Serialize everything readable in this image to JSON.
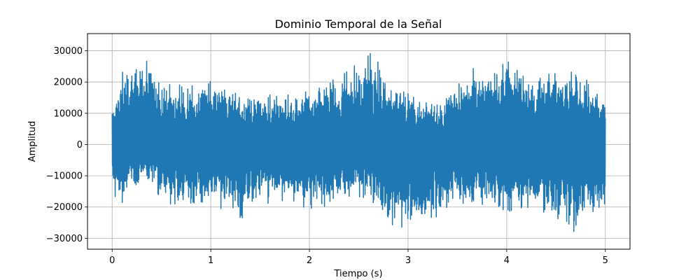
{
  "chart_data": {
    "type": "line",
    "title": "Dominio Temporal de la Señal",
    "xlabel": "Tiempo (s)",
    "ylabel": "Amplitud",
    "xlim": [
      -0.25,
      5.25
    ],
    "ylim": [
      -33500,
      35500
    ],
    "x_ticks": [
      0,
      1,
      2,
      3,
      4,
      5
    ],
    "x_tick_labels": [
      "0",
      "1",
      "2",
      "3",
      "4",
      "5"
    ],
    "y_ticks": [
      -30000,
      -20000,
      -10000,
      0,
      10000,
      20000,
      30000
    ],
    "y_tick_labels": [
      "−30000",
      "−20000",
      "−10000",
      "0",
      "10000",
      "20000",
      "30000"
    ],
    "grid": true,
    "series": [
      {
        "color": "#1f77b4",
        "x": [
          0,
          0.1,
          0.2,
          0.3,
          0.4,
          0.5,
          0.6,
          0.7,
          0.8,
          0.9,
          1.0,
          1.1,
          1.2,
          1.3,
          1.4,
          1.5,
          1.6,
          1.7,
          1.8,
          1.9,
          2.0,
          2.1,
          2.2,
          2.3,
          2.4,
          2.5,
          2.6,
          2.7,
          2.8,
          2.9,
          3.0,
          3.1,
          3.2,
          3.3,
          3.4,
          3.5,
          3.6,
          3.7,
          3.8,
          3.9,
          4.0,
          4.1,
          4.2,
          4.3,
          4.4,
          4.5,
          4.6,
          4.7,
          4.8,
          4.9,
          5.0
        ],
        "upper": [
          15000,
          25000,
          29000,
          30000,
          27000,
          22000,
          21000,
          20000,
          19000,
          20000,
          23000,
          19000,
          20000,
          17000,
          18000,
          16000,
          17000,
          18000,
          16000,
          19000,
          18000,
          20000,
          22000,
          22000,
          30000,
          25000,
          32000,
          29000,
          20000,
          20000,
          19000,
          14000,
          16000,
          13000,
          18000,
          22000,
          23000,
          26000,
          27000,
          28000,
          30000,
          28000,
          26000,
          23000,
          24000,
          26000,
          23000,
          25000,
          23000,
          20000,
          16000
        ],
        "lower": [
          -16000,
          -20000,
          -15000,
          -14000,
          -13000,
          -19000,
          -23000,
          -21000,
          -22000,
          -22000,
          -21000,
          -22000,
          -19000,
          -28000,
          -21000,
          -18000,
          -20000,
          -19000,
          -21000,
          -20000,
          -22000,
          -20000,
          -24000,
          -17000,
          -20000,
          -19000,
          -17000,
          -22000,
          -29000,
          -27000,
          -28000,
          -29000,
          -28000,
          -25000,
          -22000,
          -21000,
          -21000,
          -18000,
          -22000,
          -23000,
          -24000,
          -23000,
          -21000,
          -20000,
          -23000,
          -26000,
          -27000,
          -30000,
          -25000,
          -22000,
          -21000
        ]
      }
    ]
  }
}
